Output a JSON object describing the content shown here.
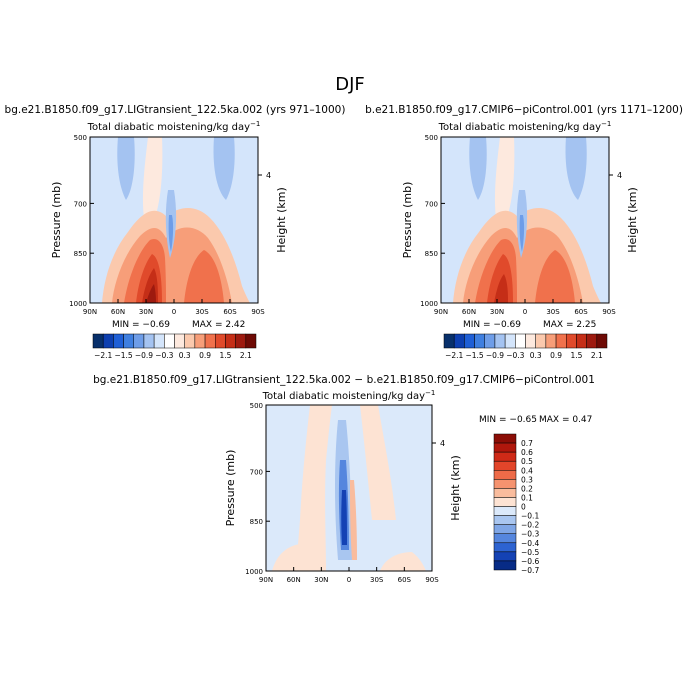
{
  "figure": {
    "season": "DJF"
  },
  "panels": {
    "a": {
      "title": "bg.e21.B1850.f09_g17.LIGtransient_122.5ka.002 (yrs 971–1000)",
      "subtitle": "Total diabatic moistening/kg day",
      "subtitle_exp": "−1",
      "ylabel": "Pressure (mb)",
      "y2label": "Height (km)",
      "min_label": "MIN =   −0.69",
      "max_label": "MAX =    2.42"
    },
    "b": {
      "title": "b.e21.B1850.f09_g17.CMIP6−piControl.001 (yrs 1171–1200)",
      "subtitle": "Total diabatic moistening/kg day",
      "subtitle_exp": "−1",
      "ylabel": "Pressure (mb)",
      "y2label": "Height (km)",
      "min_label": "MIN =   −0.69",
      "max_label": "MAX =    2.25"
    },
    "c": {
      "title": "bg.e21.B1850.f09_g17.LIGtransient_122.5ka.002 − b.e21.B1850.f09_g17.CMIP6−piControl.001",
      "subtitle": "Total diabatic moistening/kg day",
      "subtitle_exp": "−1",
      "ylabel": "Pressure (mb)",
      "y2label": "Height (km)",
      "min_label": "MIN =   −0.65",
      "max_label": "MAX =    0.47"
    }
  },
  "axes": {
    "x_ticks": [
      "90N",
      "60N",
      "30N",
      "0",
      "30S",
      "60S",
      "90S"
    ],
    "y_ticks": [
      "500",
      "700",
      "850",
      "1000"
    ],
    "y2_tick": "4"
  },
  "colorbars": {
    "top": {
      "labels": [
        "−2.1",
        "−1.5",
        "−0.9",
        "−0.3",
        "0.3",
        "0.9",
        "1.5",
        "2.1"
      ],
      "colors": [
        "#08306b",
        "#0d3fb0",
        "#1f5fd6",
        "#3f7fe0",
        "#6e9de8",
        "#a4c3f1",
        "#d4e5fb",
        "#ffffff",
        "#fde9de",
        "#fbc9ad",
        "#f79e79",
        "#f0714c",
        "#e04a2b",
        "#c52e17",
        "#9e1a0f",
        "#6e0a05"
      ]
    },
    "diff": {
      "labels": [
        "0.7",
        "0.6",
        "0.5",
        "0.4",
        "0.3",
        "0.2",
        "0.1",
        "0",
        "−0.1",
        "−0.2",
        "−0.3",
        "−0.4",
        "−0.5",
        "−0.6",
        "−0.7"
      ],
      "colors": [
        "#8b0d06",
        "#b0170c",
        "#cf2a17",
        "#e2452a",
        "#ee6b48",
        "#f5936f",
        "#f9bc9d",
        "#fde3d3",
        "#dbe9fa",
        "#a9c6f0",
        "#7fa6e6",
        "#5586de",
        "#2d63d1",
        "#1442b4",
        "#072b86"
      ]
    }
  },
  "chart_data": [
    {
      "type": "heatmap",
      "title": "bg.e21.B1850.f09_g17.LIGtransient_122.5ka.002 (yrs 971–1000)",
      "subtitle": "Total diabatic moistening/kg day−1",
      "xlabel": "",
      "ylabel": "Pressure (mb)",
      "y2label": "Height (km)",
      "x_ticks": [
        "90N",
        "60N",
        "30N",
        "0",
        "30S",
        "60S",
        "90S"
      ],
      "y_ticks": [
        500,
        700,
        850,
        1000
      ],
      "xlim": [
        90,
        -90
      ],
      "ylim": [
        1000,
        500
      ],
      "min": -0.69,
      "max": 2.42,
      "colorbar_levels": [
        -2.1,
        -1.5,
        -0.9,
        -0.3,
        0.3,
        0.9,
        1.5,
        2.1
      ],
      "features": [
        {
          "lat": 20,
          "p_min": 700,
          "p_max": 1000,
          "value": 2.1
        },
        {
          "lat": -30,
          "p_min": 780,
          "p_max": 1000,
          "value": 1.2
        },
        {
          "lat": 5,
          "p_min": 650,
          "p_max": 900,
          "value": -0.6
        },
        {
          "lat": 40,
          "p_min": 500,
          "p_max": 700,
          "value": -0.3
        },
        {
          "lat": -50,
          "p_min": 500,
          "p_max": 700,
          "value": -0.3
        }
      ]
    },
    {
      "type": "heatmap",
      "title": "b.e21.B1850.f09_g17.CMIP6−piControl.001 (yrs 1171–1200)",
      "subtitle": "Total diabatic moistening/kg day−1",
      "xlabel": "",
      "ylabel": "Pressure (mb)",
      "y2label": "Height (km)",
      "x_ticks": [
        "90N",
        "60N",
        "30N",
        "0",
        "30S",
        "60S",
        "90S"
      ],
      "y_ticks": [
        500,
        700,
        850,
        1000
      ],
      "xlim": [
        90,
        -90
      ],
      "ylim": [
        1000,
        500
      ],
      "min": -0.69,
      "max": 2.25,
      "colorbar_levels": [
        -2.1,
        -1.5,
        -0.9,
        -0.3,
        0.3,
        0.9,
        1.5,
        2.1
      ],
      "features": [
        {
          "lat": 20,
          "p_min": 720,
          "p_max": 1000,
          "value": 2.0
        },
        {
          "lat": -30,
          "p_min": 780,
          "p_max": 1000,
          "value": 1.2
        },
        {
          "lat": 5,
          "p_min": 650,
          "p_max": 900,
          "value": -0.6
        },
        {
          "lat": 40,
          "p_min": 500,
          "p_max": 700,
          "value": -0.3
        },
        {
          "lat": -50,
          "p_min": 500,
          "p_max": 700,
          "value": -0.3
        }
      ]
    },
    {
      "type": "heatmap",
      "title": "bg.e21.B1850.f09_g17.LIGtransient_122.5ka.002 − b.e21.B1850.f09_g17.CMIP6−piControl.001",
      "subtitle": "Total diabatic moistening/kg day−1",
      "xlabel": "",
      "ylabel": "Pressure (mb)",
      "y2label": "Height (km)",
      "x_ticks": [
        "90N",
        "60N",
        "30N",
        "0",
        "30S",
        "60S",
        "90S"
      ],
      "y_ticks": [
        500,
        700,
        850,
        1000
      ],
      "xlim": [
        90,
        -90
      ],
      "ylim": [
        1000,
        500
      ],
      "min": -0.65,
      "max": 0.47,
      "colorbar_levels": [
        -0.7,
        -0.6,
        -0.5,
        -0.4,
        -0.3,
        -0.2,
        -0.1,
        0,
        0.1,
        0.2,
        0.3,
        0.4,
        0.5,
        0.6,
        0.7
      ],
      "features": [
        {
          "lat": 5,
          "p_min": 700,
          "p_max": 1000,
          "value": -0.6
        },
        {
          "lat": 0,
          "p_min": 800,
          "p_max": 1000,
          "value": 0.4
        },
        {
          "lat": 20,
          "p_min": 650,
          "p_max": 1000,
          "value": 0.1
        }
      ]
    }
  ]
}
